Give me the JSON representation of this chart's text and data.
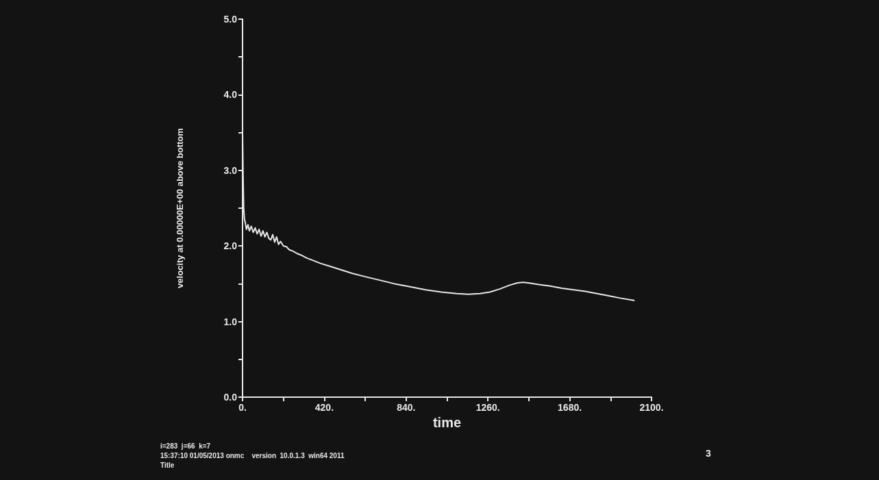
{
  "chart_data": {
    "type": "line",
    "xlabel": "time",
    "ylabel": "velocity at 0.00000E+00 above bottom",
    "x": [
      0,
      3,
      6,
      10,
      15,
      20,
      28,
      35,
      45,
      55,
      65,
      75,
      85,
      95,
      105,
      115,
      125,
      135,
      145,
      155,
      165,
      175,
      185,
      195,
      210,
      225,
      240,
      260,
      280,
      300,
      330,
      360,
      400,
      450,
      500,
      560,
      620,
      700,
      780,
      860,
      940,
      1020,
      1100,
      1160,
      1220,
      1270,
      1320,
      1370,
      1410,
      1440,
      1470,
      1520,
      1580,
      1640,
      1700,
      1760,
      1820,
      1880,
      1940,
      2010
    ],
    "series": [
      {
        "color": "#e8e8e8",
        "values": [
          3.5,
          2.9,
          2.5,
          2.35,
          2.3,
          2.22,
          2.28,
          2.2,
          2.26,
          2.18,
          2.24,
          2.16,
          2.22,
          2.13,
          2.2,
          2.12,
          2.18,
          2.1,
          2.08,
          2.15,
          2.05,
          2.12,
          2.02,
          2.06,
          2.0,
          1.99,
          1.95,
          1.93,
          1.9,
          1.88,
          1.84,
          1.81,
          1.77,
          1.73,
          1.69,
          1.64,
          1.6,
          1.55,
          1.5,
          1.46,
          1.42,
          1.39,
          1.37,
          1.36,
          1.37,
          1.39,
          1.43,
          1.48,
          1.51,
          1.52,
          1.51,
          1.49,
          1.47,
          1.44,
          1.42,
          1.4,
          1.37,
          1.34,
          1.31,
          1.28
        ]
      }
    ],
    "xlim": [
      0,
      2100
    ],
    "xticks": [
      {
        "value": 0,
        "label": "0."
      },
      {
        "value": 210,
        "label": null
      },
      {
        "value": 420,
        "label": "420."
      },
      {
        "value": 630,
        "label": null
      },
      {
        "value": 840,
        "label": "840."
      },
      {
        "value": 1050,
        "label": null
      },
      {
        "value": 1260,
        "label": "1260."
      },
      {
        "value": 1470,
        "label": null
      },
      {
        "value": 1680,
        "label": "1680."
      },
      {
        "value": 1890,
        "label": null
      },
      {
        "value": 2100,
        "label": "2100."
      }
    ],
    "ylim": [
      0,
      5
    ],
    "yticks": [
      {
        "value": 0,
        "label": "0.0"
      },
      {
        "value": 0.5,
        "label": null
      },
      {
        "value": 1,
        "label": "1.0"
      },
      {
        "value": 1.5,
        "label": null
      },
      {
        "value": 2,
        "label": "2.0"
      },
      {
        "value": 2.5,
        "label": null
      },
      {
        "value": 3,
        "label": "3.0"
      },
      {
        "value": 3.5,
        "label": null
      },
      {
        "value": 4,
        "label": "4.0"
      },
      {
        "value": 4.5,
        "label": null
      },
      {
        "value": 5,
        "label": "5.0"
      }
    ],
    "grid": false,
    "marker": "none",
    "line_style": "solid",
    "annotations": [
      "i=283  j=66  k=7",
      "15:37:10 01/05/2013 onmc    version  10.0.1.3  win64 2011",
      "Title",
      "3"
    ]
  }
}
